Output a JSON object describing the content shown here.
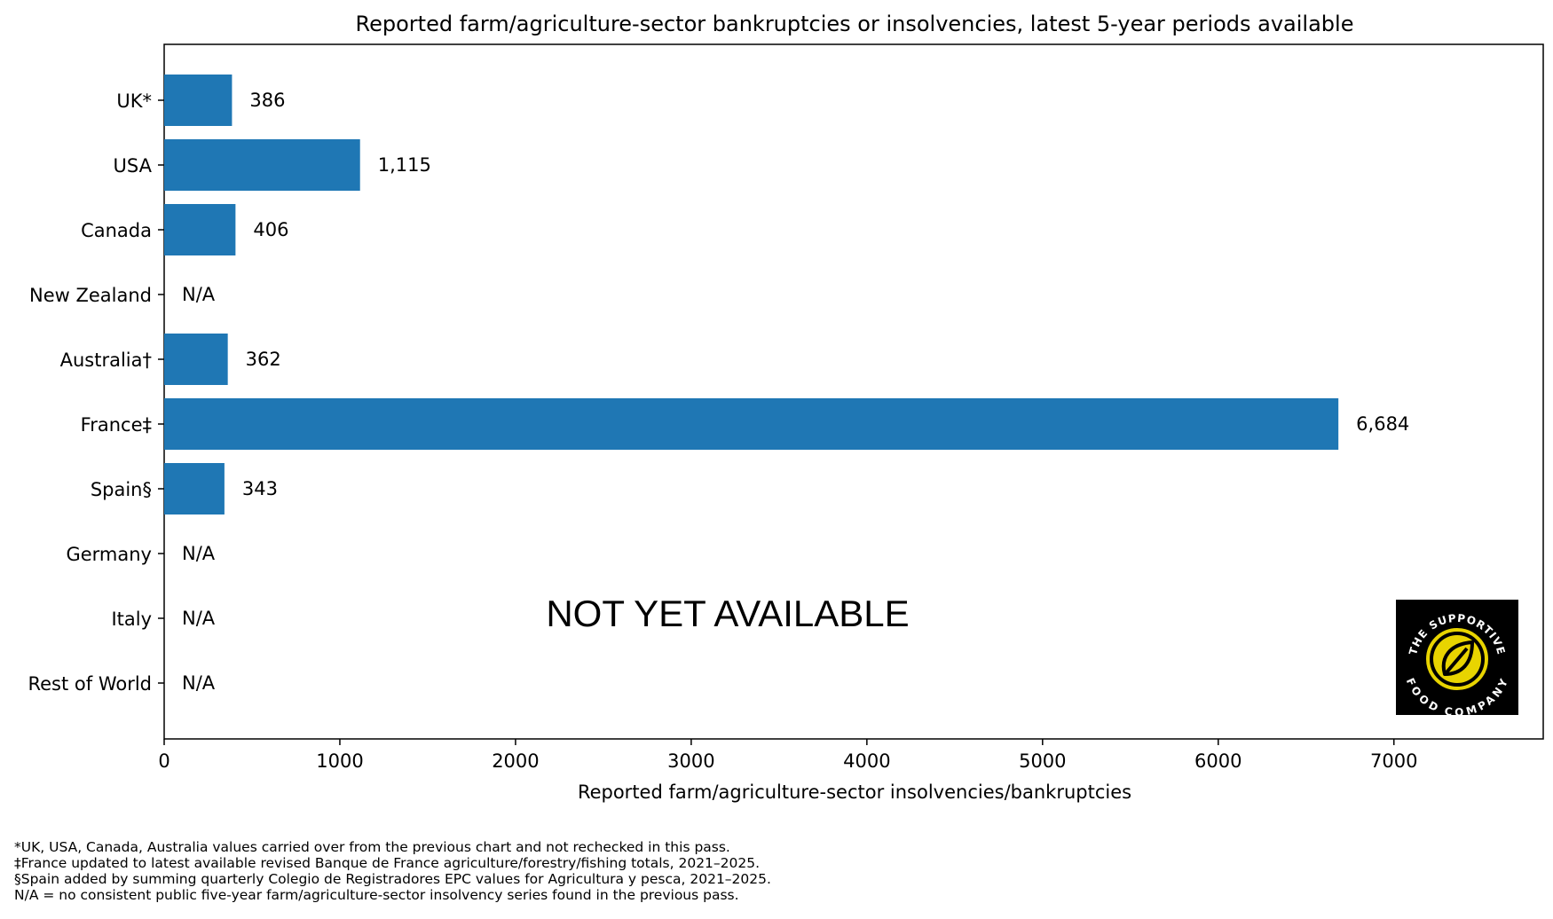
{
  "chart_data": {
    "type": "bar",
    "orientation": "horizontal",
    "title": "Reported farm/agriculture-sector bankruptcies or insolvencies, latest 5-year periods available",
    "xlabel": "Reported farm/agriculture-sector insolvencies/bankruptcies",
    "ylabel": "",
    "xlim": [
      0,
      7850
    ],
    "xticks": [
      0,
      1000,
      2000,
      3000,
      4000,
      5000,
      6000,
      7000
    ],
    "grid": false,
    "bar_color": "#1f77b4",
    "categories": [
      "UK*",
      "USA",
      "Canada",
      "New Zealand",
      "Australia†",
      "France‡",
      "Spain§",
      "Germany",
      "Italy",
      "Rest of World"
    ],
    "values": [
      386,
      1115,
      406,
      null,
      362,
      6684,
      343,
      null,
      null,
      null
    ],
    "data_labels": [
      "386",
      "1,115",
      "406",
      "N/A",
      "362",
      "6,684",
      "343",
      "N/A",
      "N/A",
      "N/A"
    ],
    "annotation": "NOT YET AVAILABLE"
  },
  "logo": {
    "name": "the-supportive-food-company-logo",
    "text_top": "THE SUPPORTIVE",
    "text_bottom": "FOOD COMPANY",
    "bg_color": "#000000",
    "accent_color": "#e8d400"
  },
  "footnotes": [
    "*UK, USA, Canada, Australia values carried over from the previous chart and not rechecked in this pass.",
    "‡France updated to latest available revised Banque de France agriculture/forestry/fishing totals, 2021–2025.",
    "§Spain added by summing quarterly Colegio de Registradores EPC values for Agricultura y pesca, 2021–2025.",
    "N/A = no consistent public five-year farm/agriculture-sector insolvency series found in the previous pass."
  ]
}
